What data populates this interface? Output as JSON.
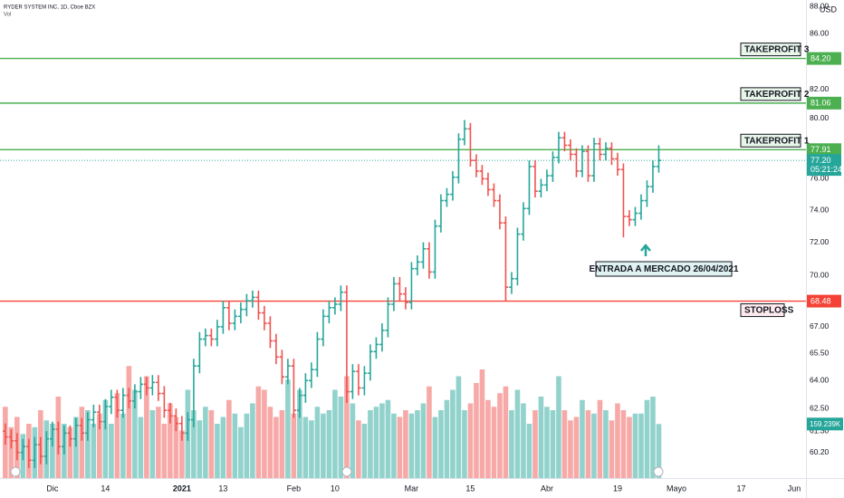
{
  "chart_data": {
    "type": "ohlc",
    "title": "RYDER SYSTEM INC, 1D, Cboe BZX",
    "volume_name": "Vol",
    "currency": "USD",
    "log_scale": true,
    "up_color": "#26a69a",
    "down_color": "#ef5350",
    "xlim": [
      -0.9,
      136
    ],
    "xticks": [
      {
        "value": 8,
        "label": "Dic"
      },
      {
        "value": 17,
        "label": "14"
      },
      {
        "value": 30,
        "label": "2021",
        "bold": true
      },
      {
        "value": 37,
        "label": "13"
      },
      {
        "value": 49,
        "label": "Feb"
      },
      {
        "value": 56,
        "label": "10"
      },
      {
        "value": 69,
        "label": "Mar"
      },
      {
        "value": 79,
        "label": "15"
      },
      {
        "value": 92,
        "label": "Abr"
      },
      {
        "value": 104,
        "label": "19"
      },
      {
        "value": 114,
        "label": "Mayo"
      },
      {
        "value": 125,
        "label": "17"
      },
      {
        "value": 134,
        "label": "Jun"
      }
    ],
    "ylim": [
      58.9,
      88.5
    ],
    "yticks": [
      {
        "value": 60.2,
        "label": "60.20"
      },
      {
        "value": 61.3,
        "label": "61.30"
      },
      {
        "value": 62.5,
        "label": "62.50"
      },
      {
        "value": 64,
        "label": "64.00"
      },
      {
        "value": 65.5,
        "label": "65.50"
      },
      {
        "value": 67,
        "label": "67.00"
      },
      {
        "value": 70,
        "label": "70.00"
      },
      {
        "value": 72,
        "label": "72.00"
      },
      {
        "value": 74,
        "label": "74.00"
      },
      {
        "value": 76,
        "label": "76.00"
      },
      {
        "value": 80,
        "label": "80.00"
      },
      {
        "value": 82,
        "label": "82.00"
      },
      {
        "value": 86,
        "label": "86.00"
      },
      {
        "value": 88,
        "label": "88.00"
      }
    ],
    "vlim": [
      0,
      400
    ],
    "open": [
      61.3,
      61.0,
      60.8,
      60.2,
      60.5,
      59.8,
      60.6,
      60.0,
      60.9,
      61.4,
      60.5,
      61.2,
      60.9,
      61.6,
      61.2,
      61.9,
      62.3,
      61.8,
      62.6,
      63.1,
      62.4,
      63.2,
      62.9,
      63.4,
      63.8,
      63.6,
      63.9,
      63.3,
      62.4,
      62.1,
      61.7,
      61.2,
      61.9,
      64.8,
      66.3,
      66.5,
      66.3,
      67.0,
      68.1,
      67.2,
      67.6,
      68.0,
      68.5,
      68.7,
      67.8,
      67.2,
      66.2,
      65.3,
      64.2,
      64.8,
      62.4,
      63.2,
      64.0,
      64.6,
      66.3,
      67.6,
      68.1,
      68.3,
      69.0,
      63.4,
      64.5,
      63.6,
      64.4,
      65.6,
      66.0,
      66.8,
      68.3,
      69.5,
      68.9,
      68.4,
      70.4,
      70.8,
      71.6,
      70.2,
      73.0,
      74.6,
      75.0,
      76.1,
      78.6,
      79.3,
      77.2,
      76.5,
      76.0,
      75.3,
      74.6,
      73.2,
      69.3,
      69.8,
      72.5,
      74.1,
      76.8,
      75.2,
      75.6,
      76.2,
      77.4,
      78.7,
      78.2,
      77.6,
      76.5,
      77.8,
      76.2,
      78.3,
      77.6,
      78.0,
      77.3,
      76.6,
      73.6,
      73.4,
      73.8,
      74.6,
      75.5,
      76.8
    ],
    "high": [
      61.7,
      61.4,
      61.2,
      60.9,
      60.9,
      61.0,
      61.0,
      61.3,
      61.8,
      61.8,
      61.6,
      61.6,
      62.0,
      62.0,
      62.3,
      62.7,
      62.7,
      63.0,
      63.5,
      63.5,
      63.6,
      63.6,
      63.8,
      64.2,
      64.2,
      64.3,
      64.3,
      63.7,
      62.8,
      62.5,
      62.1,
      62.3,
      65.2,
      66.7,
      66.9,
      66.9,
      67.4,
      68.5,
      68.5,
      68.0,
      68.4,
      68.9,
      69.1,
      69.1,
      68.2,
      67.6,
      66.6,
      65.7,
      65.2,
      65.2,
      63.6,
      64.4,
      65.0,
      66.7,
      68.0,
      68.5,
      68.7,
      69.4,
      69.4,
      64.9,
      64.9,
      64.8,
      66.0,
      66.4,
      67.2,
      68.7,
      69.9,
      69.9,
      69.3,
      70.8,
      71.2,
      72.0,
      72.0,
      73.4,
      75.0,
      75.4,
      76.5,
      79.0,
      79.9,
      79.7,
      77.6,
      76.9,
      76.4,
      75.7,
      75.0,
      73.6,
      70.2,
      72.9,
      74.5,
      77.2,
      77.2,
      76.0,
      76.6,
      77.8,
      79.1,
      79.1,
      78.6,
      78.0,
      78.2,
      78.2,
      78.7,
      78.7,
      78.4,
      78.4,
      77.7,
      77.0,
      74.0,
      74.2,
      75.0,
      75.9,
      77.2,
      78.2
    ],
    "low": [
      60.6,
      60.4,
      59.8,
      59.8,
      59.4,
      59.4,
      59.6,
      59.6,
      60.5,
      60.1,
      60.1,
      60.5,
      60.5,
      60.8,
      60.8,
      61.5,
      61.4,
      61.4,
      62.2,
      62.0,
      62.0,
      62.5,
      62.5,
      63.0,
      63.2,
      63.2,
      62.9,
      62.0,
      61.7,
      61.3,
      60.8,
      60.8,
      61.5,
      64.4,
      65.9,
      65.9,
      65.9,
      66.6,
      66.8,
      66.8,
      67.2,
      67.6,
      68.1,
      67.4,
      66.8,
      65.8,
      64.9,
      63.8,
      63.8,
      62.0,
      62.0,
      62.8,
      63.6,
      64.2,
      65.9,
      67.2,
      67.7,
      67.9,
      62.8,
      63.0,
      63.2,
      63.2,
      64.0,
      65.2,
      65.6,
      66.4,
      67.9,
      68.5,
      68.0,
      68.0,
      70.0,
      70.4,
      69.8,
      69.8,
      72.6,
      74.2,
      74.6,
      75.7,
      78.2,
      76.8,
      76.1,
      75.6,
      74.9,
      74.2,
      72.8,
      68.5,
      68.9,
      69.4,
      72.1,
      73.7,
      74.8,
      74.8,
      75.2,
      75.8,
      77.0,
      77.8,
      77.2,
      76.1,
      76.1,
      75.8,
      75.8,
      77.2,
      77.2,
      76.9,
      76.2,
      72.3,
      73.0,
      73.0,
      73.4,
      74.2,
      75.1,
      76.4
    ],
    "close": [
      61.0,
      60.8,
      60.2,
      60.5,
      59.8,
      60.6,
      60.0,
      60.9,
      61.4,
      60.5,
      61.2,
      60.9,
      61.6,
      61.2,
      61.9,
      62.3,
      61.8,
      62.6,
      63.1,
      62.4,
      63.2,
      62.9,
      63.4,
      63.8,
      63.6,
      63.9,
      63.3,
      62.4,
      62.1,
      61.7,
      61.2,
      61.9,
      64.8,
      66.3,
      66.5,
      66.3,
      67.0,
      68.1,
      67.2,
      67.6,
      68.0,
      68.5,
      68.7,
      67.8,
      67.2,
      66.2,
      65.3,
      64.2,
      64.8,
      62.4,
      63.2,
      64.0,
      64.6,
      66.3,
      67.6,
      68.1,
      68.3,
      69.0,
      63.4,
      64.5,
      63.6,
      64.4,
      65.6,
      66.0,
      66.8,
      68.3,
      69.5,
      68.9,
      68.4,
      70.4,
      70.8,
      71.6,
      70.2,
      73.0,
      74.6,
      75.0,
      76.1,
      78.6,
      79.3,
      77.2,
      76.5,
      76.0,
      75.3,
      74.6,
      73.2,
      69.3,
      69.8,
      72.5,
      74.1,
      76.8,
      75.2,
      75.6,
      76.2,
      77.4,
      78.7,
      78.2,
      77.6,
      76.5,
      77.8,
      76.2,
      78.3,
      77.6,
      78.0,
      77.3,
      76.6,
      73.6,
      73.4,
      73.8,
      74.6,
      75.5,
      76.8,
      77.2
    ],
    "volume": [
      210,
      150,
      180,
      130,
      160,
      150,
      200,
      170,
      160,
      240,
      160,
      150,
      180,
      210,
      200,
      160,
      190,
      230,
      160,
      250,
      190,
      330,
      260,
      180,
      300,
      200,
      210,
      160,
      220,
      180,
      140,
      260,
      200,
      170,
      210,
      200,
      160,
      180,
      230,
      190,
      150,
      190,
      220,
      270,
      260,
      210,
      180,
      200,
      290,
      190,
      260,
      180,
      170,
      210,
      190,
      200,
      260,
      240,
      300,
      220,
      170,
      160,
      200,
      210,
      220,
      230,
      190,
      180,
      200,
      190,
      200,
      220,
      270,
      180,
      200,
      230,
      260,
      300,
      200,
      220,
      280,
      320,
      230,
      210,
      250,
      270,
      200,
      260,
      220,
      160,
      200,
      240,
      210,
      200,
      300,
      200,
      170,
      180,
      230,
      200,
      190,
      230,
      200,
      170,
      220,
      200,
      180,
      190,
      190,
      230,
      240,
      159.239
    ],
    "volume_last_label": {
      "value": 159.239,
      "label": "159.239K"
    },
    "last_price": {
      "value": 77.2,
      "label": "77.20",
      "countdown": "05:21:24",
      "color": "#26a69a"
    },
    "levels": [
      {
        "name": "TAKEPROFIT 3",
        "value": 84.2,
        "value_label": "84.20",
        "color": "#4caf50"
      },
      {
        "name": "TAKEPROFIT 2",
        "value": 81.06,
        "value_label": "81.06",
        "color": "#4caf50"
      },
      {
        "name": "TAKEPROFIT 1",
        "value": 77.91,
        "value_label": "77.91",
        "color": "#4caf50"
      },
      {
        "name": "STOPLOSS",
        "value": 68.48,
        "value_label": "68.48",
        "color": "#f44336"
      }
    ],
    "annotations": [
      {
        "text": "ENTRADA A MERCADO 26/04/2021"
      }
    ]
  }
}
